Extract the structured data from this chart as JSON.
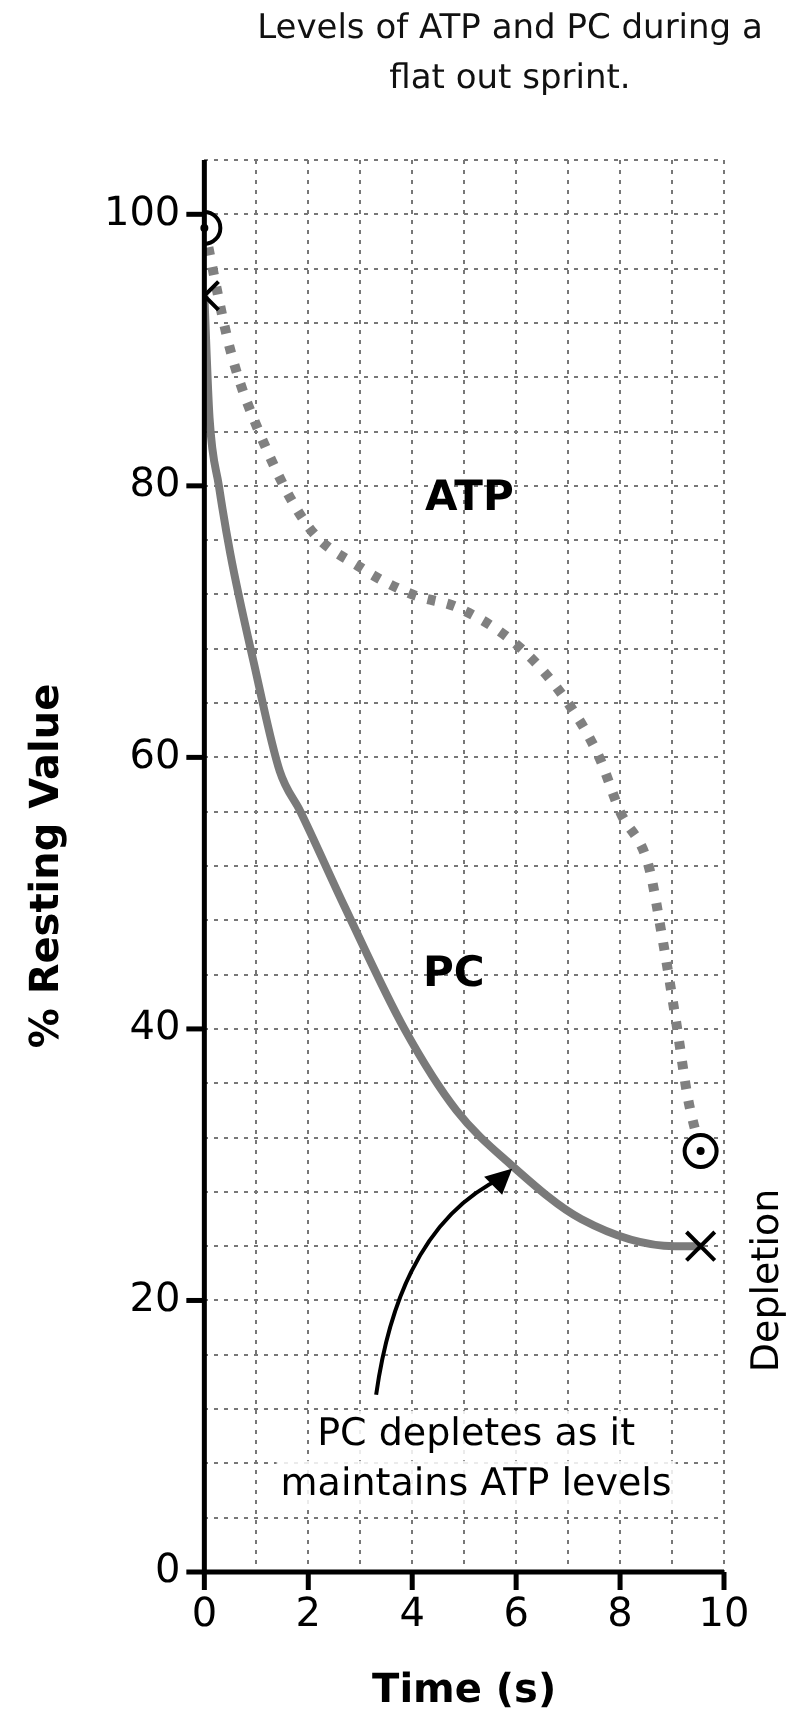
{
  "chart_data": {
    "type": "line",
    "title": "Levels of ATP and PC during a flat out sprint.",
    "xlabel": "Time (s)",
    "ylabel": "% Resting Value",
    "xlim": [
      0,
      10
    ],
    "ylim": [
      0,
      104
    ],
    "xticks": [
      0,
      {
        "value": 1,
        "label": null
      },
      2,
      {
        "value": 3,
        "label": null
      },
      4,
      {
        "value": 5,
        "label": null
      },
      6,
      {
        "value": 7,
        "label": null
      },
      8,
      {
        "value": 9,
        "label": null
      },
      10
    ],
    "yticks": [
      0,
      {
        "value": 4,
        "label": null
      },
      {
        "value": 8,
        "label": null
      },
      {
        "value": 12,
        "label": null
      },
      {
        "value": 16,
        "label": null
      },
      20,
      {
        "value": 24,
        "label": null
      },
      {
        "value": 28,
        "label": null
      },
      {
        "value": 32,
        "label": null
      },
      {
        "value": 36,
        "label": null
      },
      40,
      {
        "value": 44,
        "label": null
      },
      {
        "value": 48,
        "label": null
      },
      {
        "value": 52,
        "label": null
      },
      {
        "value": 56,
        "label": null
      },
      60,
      {
        "value": 64,
        "label": null
      },
      {
        "value": 68,
        "label": null
      },
      {
        "value": 72,
        "label": null
      },
      {
        "value": 76,
        "label": null
      },
      80,
      {
        "value": 84,
        "label": null
      },
      {
        "value": 88,
        "label": null
      },
      {
        "value": 92,
        "label": null
      },
      {
        "value": 96,
        "label": null
      },
      100,
      {
        "value": 104,
        "label": null
      }
    ],
    "grid": true,
    "legend": false,
    "series": [
      {
        "name": "ATP",
        "color": "#808080",
        "line_style": "dotted",
        "x": [
          0,
          0.5,
          1.05,
          2,
          3,
          4,
          4.9,
          6.1,
          7,
          7.6,
          8,
          8.55,
          8.8,
          9.1,
          9.3,
          9.55
        ],
        "values": [
          99,
          90,
          84,
          77,
          74,
          72,
          71,
          68,
          64,
          60,
          56,
          52,
          47,
          40,
          35,
          31
        ]
      },
      {
        "name": "PC",
        "color": "#7a7a7a",
        "line_style": "solid",
        "x": [
          0,
          0.1,
          0.28,
          0.5,
          0.95,
          1.45,
          1.85,
          2.7,
          3.85,
          4.85,
          5.9,
          7.25,
          9.05,
          9.55
        ],
        "values": [
          94,
          85,
          80,
          75,
          67,
          59,
          56,
          49,
          40,
          34,
          30,
          26,
          24,
          24
        ]
      },
      {
        "type": "scatter",
        "color": "#000000",
        "marker": "circle",
        "x": [
          0,
          9.55
        ],
        "values": [
          99,
          31
        ]
      },
      {
        "type": "scatter",
        "color": "#000000",
        "marker": "cross",
        "x": [
          0,
          9.55
        ],
        "values": [
          94,
          24
        ]
      }
    ],
    "annotations": [
      {
        "text": "PC depletes as it maintains ATP levels",
        "x": 6,
        "y": 30
      },
      "Depletion"
    ]
  }
}
